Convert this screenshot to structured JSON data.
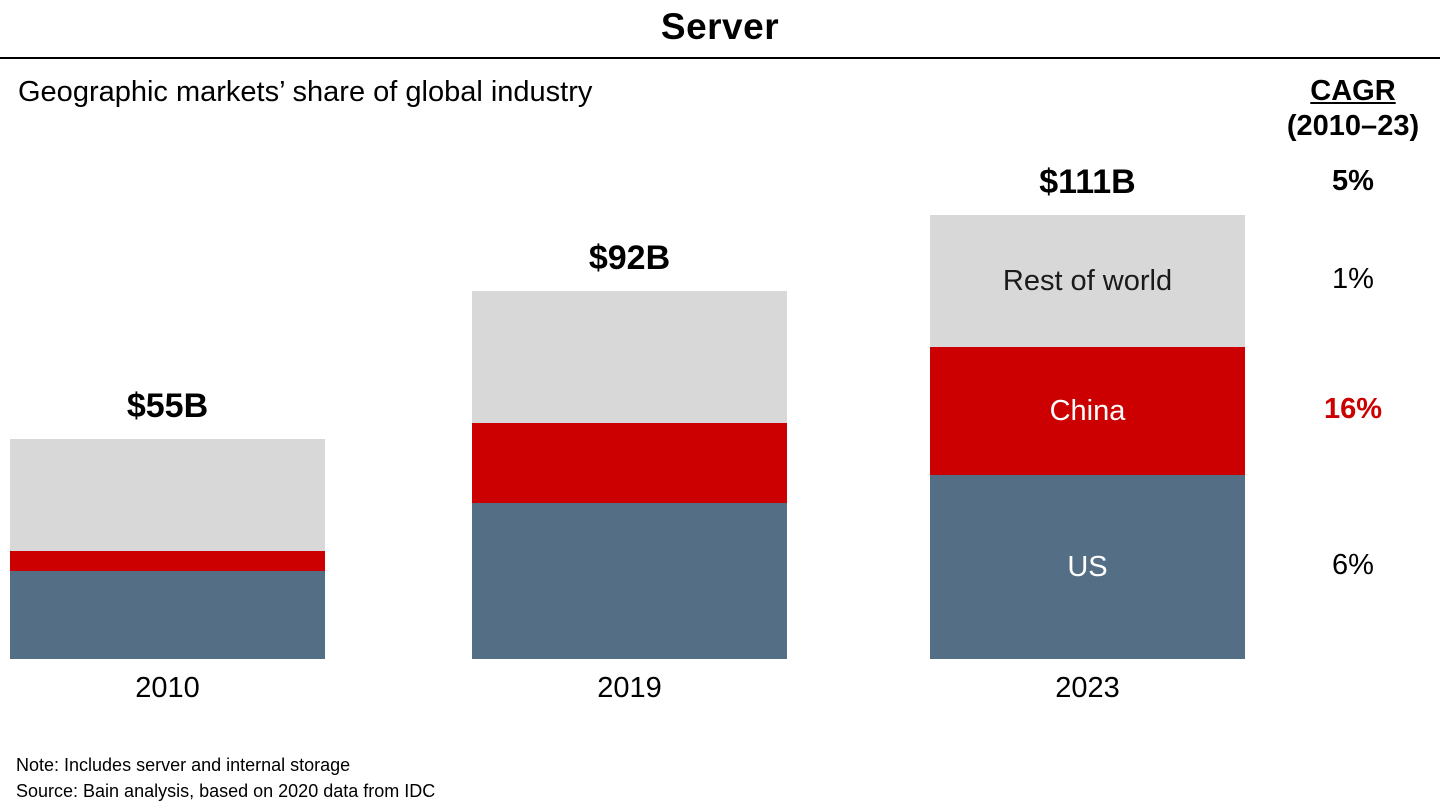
{
  "title": "Server",
  "subtitle": "Geographic markets’ share of global industry",
  "cagr_header": {
    "line1": "CAGR",
    "line2": "(2010–23)"
  },
  "notes": [
    "Note: Includes server and internal storage",
    "Source: Bain analysis, based on 2020 data from IDC"
  ],
  "chart_data": {
    "type": "bar",
    "stacked": true,
    "title": "Server",
    "subtitle": "Geographic markets’ share of global industry",
    "categories": [
      "2010",
      "2019",
      "2023"
    ],
    "totals": [
      55,
      92,
      111
    ],
    "totals_labels": [
      "$55B",
      "$92B",
      "$111B"
    ],
    "unit": "US$ billions",
    "ylim": [
      0,
      120
    ],
    "grid": false,
    "legend_position": "inside-last-bar",
    "series": [
      {
        "name": "US",
        "values": [
          22,
          39,
          46
        ],
        "color": "#546E85",
        "label_color": "#FFFFFF",
        "label_in_bar": true,
        "cagr": "6%",
        "cagr_color": "#000000",
        "cagr_bold": false
      },
      {
        "name": "China",
        "values": [
          5,
          20,
          32
        ],
        "color": "#CC0000",
        "label_color": "#FFFFFF",
        "label_in_bar": true,
        "cagr": "16%",
        "cagr_color": "#CC0000",
        "cagr_bold": true
      },
      {
        "name": "Rest of world",
        "values": [
          28,
          33,
          33
        ],
        "color": "#D8D8D8",
        "label_color": "#1A1A1A",
        "label_in_bar": true,
        "cagr": "1%",
        "cagr_color": "#000000",
        "cagr_bold": false
      }
    ],
    "total_cagr": {
      "label": "5%",
      "color": "#000000",
      "bold": true
    }
  }
}
